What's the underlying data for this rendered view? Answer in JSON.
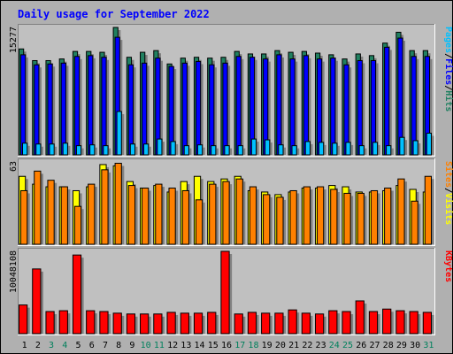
{
  "chart_data": {
    "type": "bar",
    "title": "Daily usage for September 2022",
    "categories": [
      "1",
      "2",
      "3",
      "4",
      "5",
      "6",
      "7",
      "8",
      "9",
      "10",
      "11",
      "12",
      "13",
      "14",
      "15",
      "16",
      "17",
      "18",
      "19",
      "20",
      "21",
      "22",
      "23",
      "24",
      "25",
      "26",
      "27",
      "28",
      "29",
      "30",
      "31"
    ],
    "weekend_days": [
      "3",
      "4",
      "10",
      "11",
      "17",
      "18",
      "24",
      "25",
      "31"
    ],
    "panels": [
      {
        "id": "hits",
        "max_label": "15277",
        "ylim": [
          0,
          15277
        ],
        "legend": [
          "Pages",
          "Files",
          "Hits"
        ],
        "series": [
          {
            "name": "Hits",
            "color": "#208060",
            "values": [
              12700,
              11300,
              11300,
              11500,
              12400,
              12400,
              12300,
              15277,
              11700,
              12300,
              12500,
              10900,
              11600,
              11700,
              11600,
              11700,
              12400,
              12100,
              12100,
              12500,
              12300,
              12400,
              12200,
              12000,
              11500,
              12100,
              11900,
              13400,
              14700,
              12500,
              12500
            ]
          },
          {
            "name": "Files",
            "color": "#0000ff",
            "values": [
              12000,
              10800,
              10900,
              11000,
              11800,
              11900,
              11700,
              14100,
              10800,
              11000,
              11600,
              10600,
              11000,
              11200,
              10800,
              11000,
              11800,
              11700,
              11500,
              12000,
              11500,
              11900,
              11500,
              11600,
              10800,
              11300,
              11300,
              12900,
              14000,
              11800,
              11800
            ]
          },
          {
            "name": "Pages",
            "color": "#00c0ff",
            "values": [
              1400,
              1300,
              1300,
              1400,
              1100,
              1200,
              1100,
              5200,
              1300,
              1300,
              1900,
              1600,
              1100,
              1200,
              1100,
              1100,
              1100,
              1900,
              1800,
              1200,
              1100,
              1600,
              1500,
              1400,
              1500,
              1100,
              1500,
              1100,
              2100,
              1700,
              2600
            ]
          }
        ]
      },
      {
        "id": "visits",
        "max_label": "63",
        "ylim": [
          0,
          63
        ],
        "legend": [
          "Sites",
          "Visits"
        ],
        "series": [
          {
            "name": "Visits",
            "color": "#ffff00",
            "values": [
              52,
              46,
              44,
              44,
              41,
              44,
              61,
              60,
              48,
              43,
              45,
              40,
              48,
              52,
              48,
              50,
              52,
              41,
              40,
              38,
              40,
              43,
              43,
              45,
              44,
              40,
              40,
              41,
              45,
              42,
              40
            ]
          },
          {
            "name": "Sites",
            "color": "#ff8000",
            "values": [
              41,
              56,
              49,
              44,
              29,
              46,
              57,
              62,
              45,
              43,
              46,
              43,
              41,
              34,
              46,
              48,
              50,
              44,
              38,
              36,
              41,
              44,
              44,
              42,
              39,
              39,
              41,
              43,
              50,
              33,
              52
            ]
          }
        ]
      },
      {
        "id": "kbytes",
        "max_label": "10048108",
        "ylim": [
          0,
          10048108
        ],
        "legend": [
          "KBytes"
        ],
        "series": [
          {
            "name": "KBytes",
            "color": "#ff0000",
            "values": [
              3500000,
              7900000,
              2700000,
              2800000,
              9600000,
              2800000,
              2700000,
              2500000,
              2400000,
              2400000,
              2400000,
              2600000,
              2500000,
              2500000,
              2600000,
              10048108,
              2400000,
              2600000,
              2500000,
              2500000,
              2900000,
              2500000,
              2400000,
              2800000,
              2700000,
              4000000,
              2700000,
              3000000,
              2800000,
              2700000,
              2600000
            ]
          }
        ]
      }
    ]
  }
}
